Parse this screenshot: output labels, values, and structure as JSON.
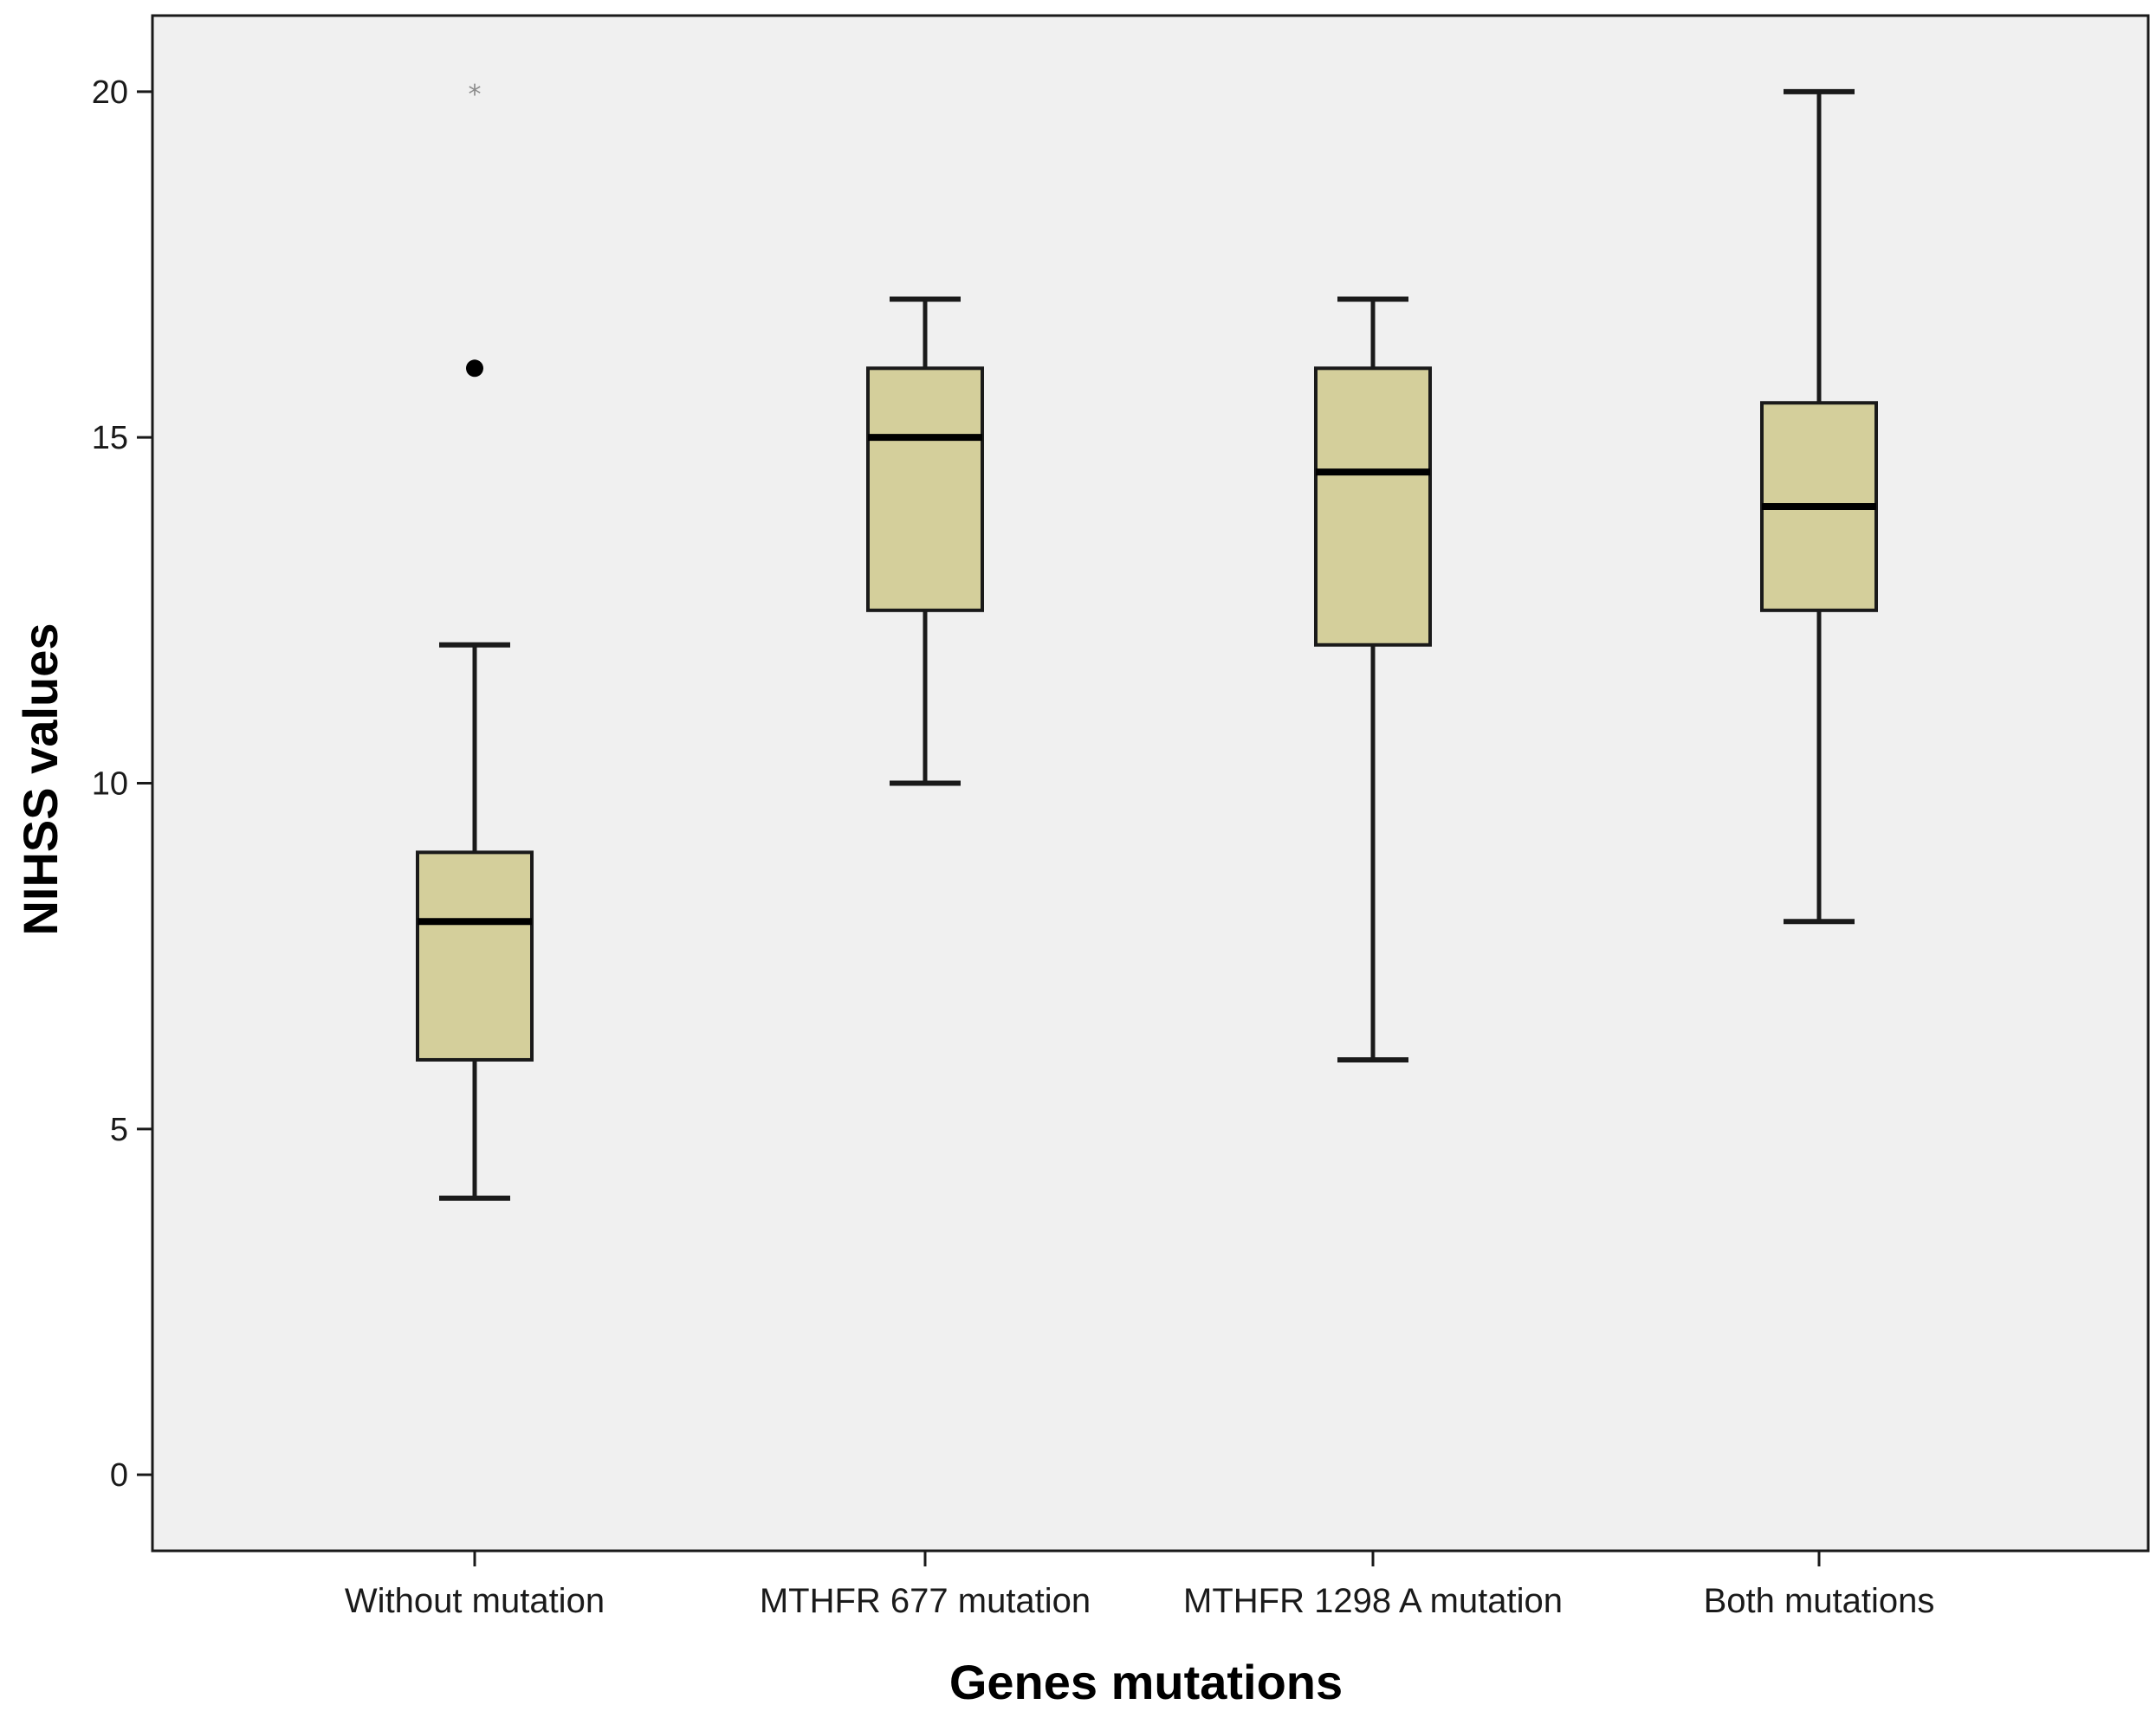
{
  "chart_data": {
    "type": "boxplot",
    "xlabel": "Genes mutations",
    "ylabel": "NIHSS values",
    "ylim": [
      -1.1,
      21.1
    ],
    "y_ticks": [
      0,
      5,
      10,
      15,
      20
    ],
    "y_tick_labels": [
      "0",
      "5",
      "10",
      "15",
      "20"
    ],
    "grid": false,
    "legend": "none",
    "categories": [
      "Without mutation",
      "MTHFR 677 mutation",
      "MTHFR 1298 A mutation",
      "Both mutations"
    ],
    "boxes": [
      {
        "category": "Without mutation",
        "min": 4,
        "q1": 6,
        "median": 8,
        "q3": 9,
        "max": 12,
        "outliers": [
          {
            "value": 16,
            "kind": "outlier"
          },
          {
            "value": 20,
            "kind": "extreme"
          }
        ]
      },
      {
        "category": "MTHFR 677 mutation",
        "min": 10,
        "q1": 12.5,
        "median": 15,
        "q3": 16,
        "max": 17,
        "outliers": []
      },
      {
        "category": "MTHFR 1298 A mutation",
        "min": 6,
        "q1": 12,
        "median": 14.5,
        "q3": 16,
        "max": 17,
        "outliers": []
      },
      {
        "category": "Both mutations",
        "min": 8,
        "q1": 12.5,
        "median": 14,
        "q3": 15.5,
        "max": 20,
        "outliers": []
      }
    ],
    "colors": {
      "plot_background": "#f0f0f0",
      "box_fill": "#d4cf9b",
      "box_stroke": "#1a1a1a",
      "median": "#000000",
      "extreme_marker": "#8c8c8c"
    }
  }
}
